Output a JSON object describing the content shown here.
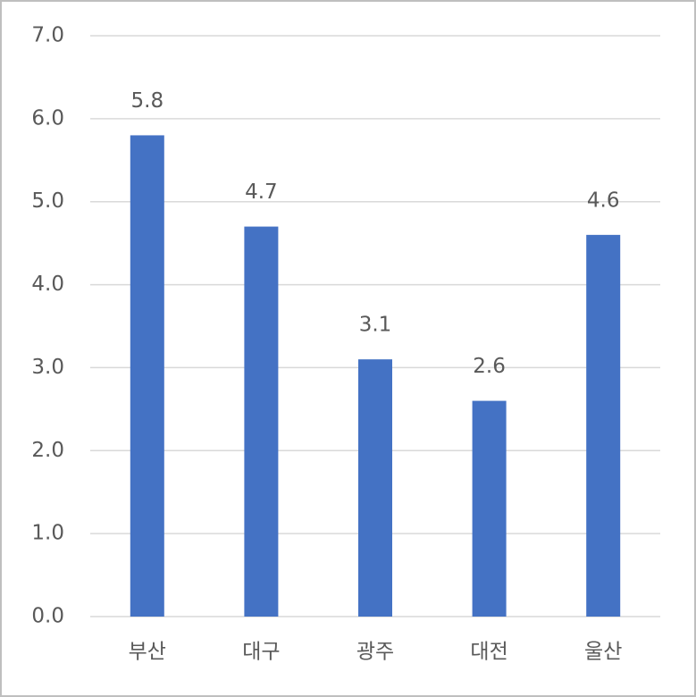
{
  "chart_data": {
    "type": "bar",
    "categories": [
      "부산",
      "대구",
      "광주",
      "대전",
      "울산"
    ],
    "values": [
      5.8,
      4.7,
      3.1,
      2.6,
      4.6
    ],
    "color": "#4472c4",
    "ylim": [
      0,
      7
    ],
    "yticks": [
      {
        "value": 0,
        "label": "0.0"
      },
      {
        "value": 1,
        "label": "1.0"
      },
      {
        "value": 2,
        "label": "2.0"
      },
      {
        "value": 3,
        "label": "3.0"
      },
      {
        "value": 4,
        "label": "4.0"
      },
      {
        "value": 5,
        "label": "5.0"
      },
      {
        "value": 6,
        "label": "6.0"
      },
      {
        "value": 7,
        "label": "7.0"
      }
    ],
    "grid": true
  }
}
